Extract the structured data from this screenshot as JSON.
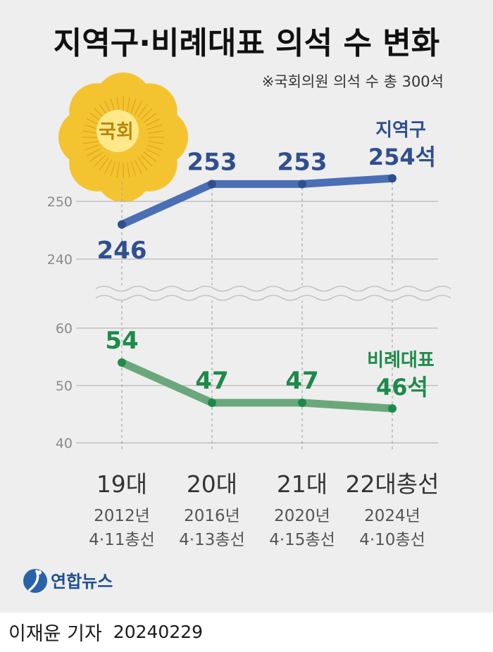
{
  "title": "지역구·비례대표 의석 수 변화",
  "note": "※국회의원 의석 수 총 300석",
  "emblem_text": "국회",
  "credit": {
    "brand": "연합뉴스"
  },
  "footer": {
    "reporter": "이재윤 기자",
    "date": "20240229"
  },
  "colors": {
    "district": "#4a6fb5",
    "district_text": "#2f4f8f",
    "proportional": "#6aa87c",
    "proportional_text": "#1e8a4a",
    "emblem": "#f4c430"
  },
  "chart_data": {
    "type": "line",
    "categories": [
      "19대",
      "20대",
      "21대",
      "22대총선"
    ],
    "category_dates": [
      "2012년",
      "2016년",
      "2020년",
      "2024년"
    ],
    "category_elections": [
      "4·11총선",
      "4·13총선",
      "4·15총선",
      "4·10총선"
    ],
    "series": [
      {
        "name": "지역구",
        "values": [
          246,
          253,
          253,
          254
        ],
        "end_label": "254석"
      },
      {
        "name": "비례대표",
        "values": [
          54,
          47,
          47,
          46
        ],
        "end_label": "46석"
      }
    ],
    "value_labels": {
      "district": [
        "246",
        "253",
        "253"
      ],
      "proportional": [
        "54",
        "47",
        "47"
      ]
    },
    "upper_axis": {
      "ticks": [
        240,
        250
      ],
      "labels": [
        "240",
        "250"
      ]
    },
    "lower_axis": {
      "ticks": [
        40,
        50,
        60
      ],
      "labels": [
        "40",
        "50",
        "60"
      ]
    },
    "axis_break": true,
    "grid": true
  }
}
